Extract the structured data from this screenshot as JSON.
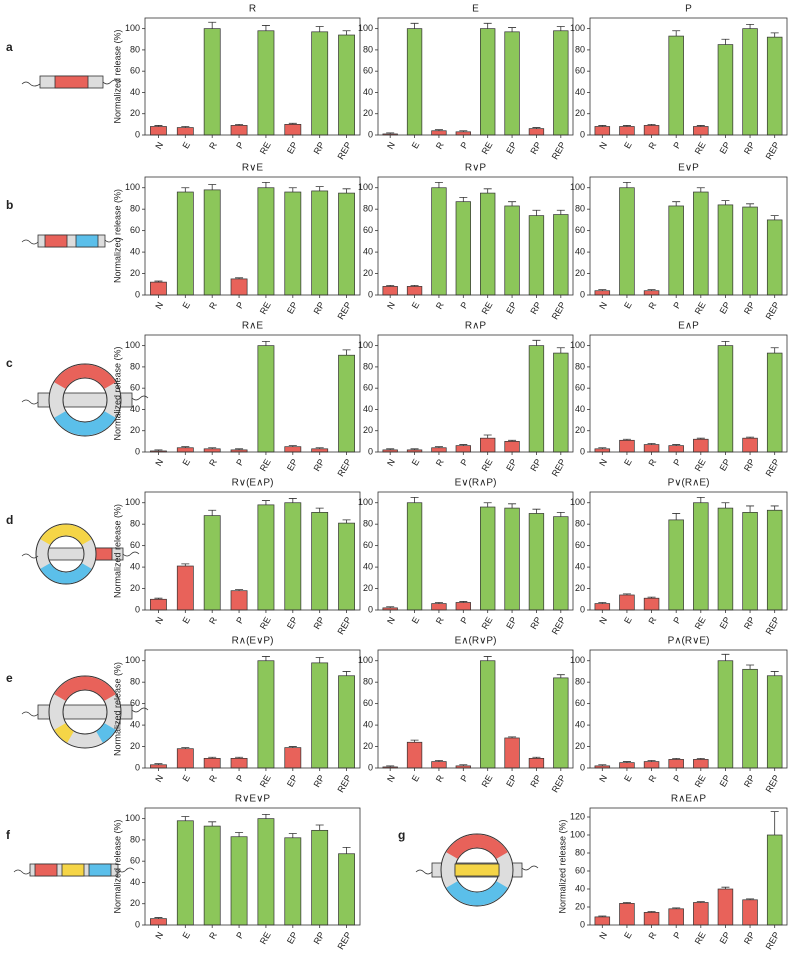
{
  "panel_labels": [
    "a",
    "b",
    "c",
    "d",
    "e",
    "f",
    "g"
  ],
  "chart_data": [
    {
      "type": "bar",
      "title": "R",
      "y_label": "Normalized release (%)",
      "categories": [
        "N",
        "E",
        "R",
        "P",
        "RE",
        "EP",
        "RP",
        "REP"
      ],
      "values": [
        8,
        7,
        100,
        9,
        98,
        10,
        97,
        94
      ],
      "errors": [
        1,
        1,
        6,
        1,
        5,
        1,
        5,
        4
      ],
      "colors": [
        "#e8625a",
        "#e8625a",
        "#8cc65a",
        "#e8625a",
        "#8cc65a",
        "#e8625a",
        "#8cc65a",
        "#8cc65a"
      ],
      "ylim": [
        0,
        110
      ],
      "yticks": [
        0,
        20,
        40,
        60,
        80,
        100
      ]
    },
    {
      "type": "bar",
      "title": "E",
      "categories": [
        "N",
        "E",
        "R",
        "P",
        "RE",
        "EP",
        "RP",
        "REP"
      ],
      "values": [
        1,
        100,
        4,
        3,
        100,
        97,
        6,
        98
      ],
      "errors": [
        1,
        5,
        1,
        1,
        5,
        4,
        1,
        4
      ],
      "colors": [
        "#e8625a",
        "#8cc65a",
        "#e8625a",
        "#e8625a",
        "#8cc65a",
        "#8cc65a",
        "#e8625a",
        "#8cc65a"
      ],
      "ylim": [
        0,
        110
      ],
      "yticks": [
        0,
        20,
        40,
        60,
        80,
        100
      ]
    },
    {
      "type": "bar",
      "title": "P",
      "categories": [
        "N",
        "E",
        "R",
        "P",
        "RE",
        "EP",
        "RP",
        "REP"
      ],
      "values": [
        8,
        8,
        9,
        93,
        8,
        85,
        100,
        92
      ],
      "errors": [
        1,
        1,
        1,
        5,
        1,
        5,
        4,
        4
      ],
      "colors": [
        "#e8625a",
        "#e8625a",
        "#e8625a",
        "#8cc65a",
        "#e8625a",
        "#8cc65a",
        "#8cc65a",
        "#8cc65a"
      ],
      "ylim": [
        0,
        110
      ],
      "yticks": [
        0,
        20,
        40,
        60,
        80,
        100
      ]
    },
    {
      "type": "bar",
      "title": "R∨E",
      "y_label": "Normalized release (%)",
      "categories": [
        "N",
        "E",
        "R",
        "P",
        "RE",
        "EP",
        "RP",
        "REP"
      ],
      "values": [
        12,
        96,
        98,
        15,
        100,
        96,
        97,
        95
      ],
      "errors": [
        1,
        4,
        5,
        1,
        5,
        4,
        4,
        4
      ],
      "colors": [
        "#e8625a",
        "#8cc65a",
        "#8cc65a",
        "#e8625a",
        "#8cc65a",
        "#8cc65a",
        "#8cc65a",
        "#8cc65a"
      ],
      "ylim": [
        0,
        110
      ],
      "yticks": [
        0,
        20,
        40,
        60,
        80,
        100
      ]
    },
    {
      "type": "bar",
      "title": "R∨P",
      "categories": [
        "N",
        "E",
        "R",
        "P",
        "RE",
        "EP",
        "RP",
        "REP"
      ],
      "values": [
        8,
        8,
        100,
        87,
        95,
        83,
        74,
        75
      ],
      "errors": [
        1,
        1,
        5,
        4,
        4,
        4,
        5,
        4
      ],
      "colors": [
        "#e8625a",
        "#e8625a",
        "#8cc65a",
        "#8cc65a",
        "#8cc65a",
        "#8cc65a",
        "#8cc65a",
        "#8cc65a"
      ],
      "ylim": [
        0,
        110
      ],
      "yticks": [
        0,
        20,
        40,
        60,
        80,
        100
      ]
    },
    {
      "type": "bar",
      "title": "E∨P",
      "categories": [
        "N",
        "E",
        "R",
        "P",
        "RE",
        "EP",
        "RP",
        "REP"
      ],
      "values": [
        4,
        100,
        4,
        83,
        96,
        84,
        82,
        70
      ],
      "errors": [
        1,
        5,
        1,
        4,
        4,
        4,
        3,
        4
      ],
      "colors": [
        "#e8625a",
        "#8cc65a",
        "#e8625a",
        "#8cc65a",
        "#8cc65a",
        "#8cc65a",
        "#8cc65a",
        "#8cc65a"
      ],
      "ylim": [
        0,
        110
      ],
      "yticks": [
        0,
        20,
        40,
        60,
        80,
        100
      ]
    },
    {
      "type": "bar",
      "title": "R∧E",
      "y_label": "Normalized release (%)",
      "categories": [
        "N",
        "E",
        "R",
        "P",
        "RE",
        "EP",
        "RP",
        "REP"
      ],
      "values": [
        1,
        4,
        3,
        2,
        100,
        5,
        3,
        91
      ],
      "errors": [
        1,
        1,
        1,
        1,
        4,
        1,
        1,
        5
      ],
      "colors": [
        "#e8625a",
        "#e8625a",
        "#e8625a",
        "#e8625a",
        "#8cc65a",
        "#e8625a",
        "#e8625a",
        "#8cc65a"
      ],
      "ylim": [
        0,
        110
      ],
      "yticks": [
        0,
        20,
        40,
        60,
        80,
        100
      ]
    },
    {
      "type": "bar",
      "title": "R∧P",
      "categories": [
        "N",
        "E",
        "R",
        "P",
        "RE",
        "EP",
        "RP",
        "REP"
      ],
      "values": [
        2,
        2,
        4,
        6,
        13,
        10,
        100,
        93
      ],
      "errors": [
        1,
        1,
        1,
        1,
        3,
        1,
        5,
        5
      ],
      "colors": [
        "#e8625a",
        "#e8625a",
        "#e8625a",
        "#e8625a",
        "#e8625a",
        "#e8625a",
        "#8cc65a",
        "#8cc65a"
      ],
      "ylim": [
        0,
        110
      ],
      "yticks": [
        0,
        20,
        40,
        60,
        80,
        100
      ]
    },
    {
      "type": "bar",
      "title": "E∧P",
      "categories": [
        "N",
        "E",
        "R",
        "P",
        "RE",
        "EP",
        "RP",
        "REP"
      ],
      "values": [
        3,
        11,
        7,
        6,
        12,
        100,
        13,
        93
      ],
      "errors": [
        1,
        1,
        1,
        1,
        1,
        4,
        1,
        5
      ],
      "colors": [
        "#e8625a",
        "#e8625a",
        "#e8625a",
        "#e8625a",
        "#e8625a",
        "#8cc65a",
        "#e8625a",
        "#8cc65a"
      ],
      "ylim": [
        0,
        110
      ],
      "yticks": [
        0,
        20,
        40,
        60,
        80,
        100
      ]
    },
    {
      "type": "bar",
      "title": "R∨(E∧P)",
      "y_label": "Normalized release (%)",
      "categories": [
        "N",
        "E",
        "R",
        "P",
        "RE",
        "EP",
        "RP",
        "REP"
      ],
      "values": [
        10,
        41,
        88,
        18,
        98,
        100,
        91,
        81
      ],
      "errors": [
        1,
        2,
        5,
        1,
        4,
        4,
        4,
        3
      ],
      "colors": [
        "#e8625a",
        "#e8625a",
        "#8cc65a",
        "#e8625a",
        "#8cc65a",
        "#8cc65a",
        "#8cc65a",
        "#8cc65a"
      ],
      "ylim": [
        0,
        110
      ],
      "yticks": [
        0,
        20,
        40,
        60,
        80,
        100
      ]
    },
    {
      "type": "bar",
      "title": "E∨(R∧P)",
      "categories": [
        "N",
        "E",
        "R",
        "P",
        "RE",
        "EP",
        "RP",
        "REP"
      ],
      "values": [
        2,
        100,
        6,
        7,
        96,
        95,
        90,
        87
      ],
      "errors": [
        1,
        5,
        1,
        1,
        4,
        4,
        4,
        4
      ],
      "colors": [
        "#e8625a",
        "#8cc65a",
        "#e8625a",
        "#e8625a",
        "#8cc65a",
        "#8cc65a",
        "#8cc65a",
        "#8cc65a"
      ],
      "ylim": [
        0,
        110
      ],
      "yticks": [
        0,
        20,
        40,
        60,
        80,
        100
      ]
    },
    {
      "type": "bar",
      "title": "P∨(R∧E)",
      "categories": [
        "N",
        "E",
        "R",
        "P",
        "RE",
        "EP",
        "RP",
        "REP"
      ],
      "values": [
        6,
        14,
        11,
        84,
        100,
        95,
        91,
        93
      ],
      "errors": [
        1,
        1,
        1,
        6,
        5,
        5,
        6,
        4
      ],
      "colors": [
        "#e8625a",
        "#e8625a",
        "#e8625a",
        "#8cc65a",
        "#8cc65a",
        "#8cc65a",
        "#8cc65a",
        "#8cc65a"
      ],
      "ylim": [
        0,
        110
      ],
      "yticks": [
        0,
        20,
        40,
        60,
        80,
        100
      ]
    },
    {
      "type": "bar",
      "title": "R∧(E∨P)",
      "y_label": "Normalized release (%)",
      "categories": [
        "N",
        "E",
        "R",
        "P",
        "RE",
        "EP",
        "RP",
        "REP"
      ],
      "values": [
        3,
        18,
        9,
        9,
        100,
        19,
        98,
        86
      ],
      "errors": [
        1,
        1,
        1,
        1,
        4,
        1,
        5,
        4
      ],
      "colors": [
        "#e8625a",
        "#e8625a",
        "#e8625a",
        "#e8625a",
        "#8cc65a",
        "#e8625a",
        "#8cc65a",
        "#8cc65a"
      ],
      "ylim": [
        0,
        110
      ],
      "yticks": [
        0,
        20,
        40,
        60,
        80,
        100
      ]
    },
    {
      "type": "bar",
      "title": "E∧(R∨P)",
      "categories": [
        "N",
        "E",
        "R",
        "P",
        "RE",
        "EP",
        "RP",
        "REP"
      ],
      "values": [
        1,
        24,
        6,
        2,
        100,
        28,
        9,
        84
      ],
      "errors": [
        1,
        2,
        1,
        1,
        4,
        1,
        1,
        3
      ],
      "colors": [
        "#e8625a",
        "#e8625a",
        "#e8625a",
        "#e8625a",
        "#8cc65a",
        "#e8625a",
        "#e8625a",
        "#8cc65a"
      ],
      "ylim": [
        0,
        110
      ],
      "yticks": [
        0,
        20,
        40,
        60,
        80,
        100
      ]
    },
    {
      "type": "bar",
      "title": "P∧(R∨E)",
      "categories": [
        "N",
        "E",
        "R",
        "P",
        "RE",
        "EP",
        "RP",
        "REP"
      ],
      "values": [
        2,
        5,
        6,
        8,
        8,
        100,
        92,
        86
      ],
      "errors": [
        1,
        1,
        1,
        1,
        1,
        6,
        4,
        4
      ],
      "colors": [
        "#e8625a",
        "#e8625a",
        "#e8625a",
        "#e8625a",
        "#e8625a",
        "#8cc65a",
        "#8cc65a",
        "#8cc65a"
      ],
      "ylim": [
        0,
        110
      ],
      "yticks": [
        0,
        20,
        40,
        60,
        80,
        100
      ]
    },
    {
      "type": "bar",
      "title": "R∨E∨P",
      "y_label": "Normalized release (%)",
      "categories": [
        "N",
        "E",
        "R",
        "P",
        "RE",
        "EP",
        "RP",
        "REP"
      ],
      "values": [
        6,
        98,
        93,
        83,
        100,
        82,
        89,
        67
      ],
      "errors": [
        1,
        4,
        4,
        4,
        4,
        4,
        5,
        6
      ],
      "colors": [
        "#e8625a",
        "#8cc65a",
        "#8cc65a",
        "#8cc65a",
        "#8cc65a",
        "#8cc65a",
        "#8cc65a",
        "#8cc65a"
      ],
      "ylim": [
        0,
        110
      ],
      "yticks": [
        0,
        20,
        40,
        60,
        80,
        100
      ]
    },
    {
      "type": "bar",
      "title": "R∧E∧P",
      "y_label": "Normalized release (%)",
      "categories": [
        "N",
        "E",
        "R",
        "P",
        "RE",
        "EP",
        "RP",
        "REP"
      ],
      "values": [
        9,
        24,
        14,
        18,
        25,
        40,
        28,
        100
      ],
      "errors": [
        1,
        1,
        1,
        1,
        1,
        2,
        1,
        26
      ],
      "colors": [
        "#e8625a",
        "#e8625a",
        "#e8625a",
        "#e8625a",
        "#e8625a",
        "#e8625a",
        "#e8625a",
        "#8cc65a"
      ],
      "ylim": [
        0,
        130
      ],
      "yticks": [
        0,
        20,
        40,
        60,
        80,
        100,
        120
      ]
    }
  ]
}
